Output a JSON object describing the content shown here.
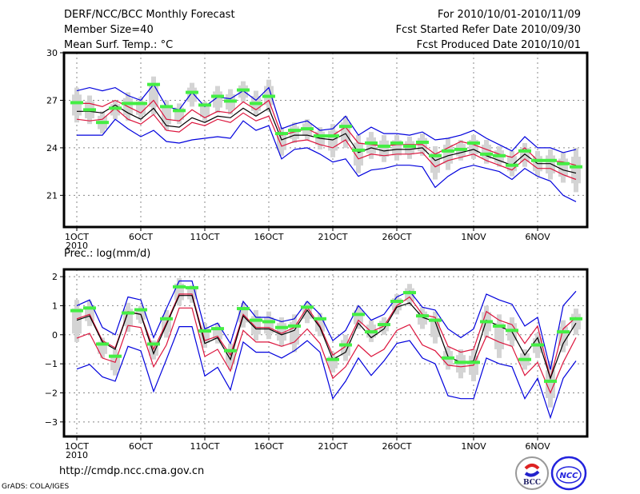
{
  "header": {
    "title": "DERF/NCC/BCC Monthly Forecast",
    "member_size": "Member Size=40",
    "variable": "Mean Surf. Temp.: °C",
    "period": "For 2010/10/01-2010/11/09",
    "start_date": "Fcst Started Refer Date 2010/09/30",
    "produced_date": "Fcst Produced Date 2010/10/01"
  },
  "footer": {
    "url": "http://cmdp.ncc.cma.gov.cn",
    "grads": "GrADS: COLA/IGES",
    "logos": [
      "BCC",
      "NCC"
    ]
  },
  "colors": {
    "ensemble_mean": "#000000",
    "inner_band": "#dc143c",
    "outer_band": "#0000dd",
    "observed_or_control": "#44ee44",
    "spread_box": "#d4d4d4",
    "grid": "#888888"
  },
  "chart_data": [
    {
      "type": "line",
      "title": "Mean Surf. Temp.: °C",
      "xlabel": "",
      "ylabel": "Mean Surf. Temp. (°C)",
      "x_start": "2010-10-01",
      "days": 40,
      "xticks": [
        {
          "day": 1,
          "label": "1OCT",
          "sublabel": "2010"
        },
        {
          "day": 6,
          "label": "6OCT"
        },
        {
          "day": 11,
          "label": "11OCT"
        },
        {
          "day": 16,
          "label": "16OCT"
        },
        {
          "day": 21,
          "label": "21OCT"
        },
        {
          "day": 26,
          "label": "26OCT"
        },
        {
          "day": 32,
          "label": "1NOV"
        },
        {
          "day": 37,
          "label": "6NOV"
        }
      ],
      "yticks": [
        21,
        24,
        27,
        30
      ],
      "ylim": [
        19,
        30
      ],
      "grid": true,
      "series": [
        {
          "name": "upper-outer",
          "color": "blue",
          "values": [
            27.6,
            27.8,
            27.6,
            27.8,
            27.3,
            27.0,
            28.0,
            26.6,
            26.4,
            27.5,
            26.6,
            27.2,
            27.1,
            27.6,
            27.0,
            27.8,
            25.2,
            25.5,
            25.7,
            25.1,
            25.2,
            26.0,
            24.8,
            25.3,
            24.9,
            24.9,
            24.8,
            25.0,
            24.5,
            24.6,
            24.8,
            25.1,
            24.6,
            24.2,
            23.8,
            24.7,
            24.0,
            24.0,
            23.7,
            23.9
          ]
        },
        {
          "name": "upper-inner",
          "color": "red",
          "values": [
            26.8,
            26.8,
            26.6,
            27.0,
            26.6,
            26.2,
            27.0,
            25.8,
            25.7,
            26.4,
            25.9,
            26.3,
            26.2,
            26.9,
            26.4,
            27.0,
            24.8,
            25.0,
            25.2,
            24.8,
            24.8,
            25.3,
            24.3,
            24.2,
            24.1,
            24.2,
            24.2,
            24.2,
            23.6,
            24.0,
            24.4,
            24.2,
            23.9,
            23.6,
            23.4,
            24.0,
            23.2,
            23.2,
            23.1,
            22.9
          ]
        },
        {
          "name": "ensemble-mean",
          "color": "black",
          "values": [
            26.3,
            26.3,
            26.2,
            26.7,
            26.2,
            25.8,
            26.5,
            25.4,
            25.3,
            25.9,
            25.6,
            26.0,
            25.9,
            26.5,
            26.0,
            26.5,
            24.5,
            24.8,
            24.8,
            24.6,
            24.5,
            24.9,
            23.7,
            24.0,
            23.8,
            23.9,
            23.9,
            24.0,
            23.2,
            23.5,
            23.7,
            23.9,
            23.5,
            23.2,
            22.9,
            23.6,
            23.0,
            23.0,
            22.6,
            22.4
          ]
        },
        {
          "name": "lower-inner",
          "color": "red",
          "values": [
            25.8,
            25.7,
            25.8,
            26.5,
            25.8,
            25.5,
            26.1,
            25.1,
            25.0,
            25.6,
            25.4,
            25.8,
            25.6,
            26.2,
            25.7,
            26.0,
            24.1,
            24.4,
            24.5,
            24.2,
            24.0,
            24.5,
            23.3,
            23.6,
            23.5,
            23.6,
            23.6,
            23.7,
            22.8,
            23.2,
            23.4,
            23.6,
            23.2,
            22.9,
            22.6,
            23.3,
            22.7,
            22.7,
            22.3,
            22.0
          ]
        },
        {
          "name": "lower-outer",
          "color": "blue",
          "values": [
            24.8,
            24.8,
            24.8,
            25.8,
            25.2,
            24.7,
            25.1,
            24.4,
            24.3,
            24.5,
            24.6,
            24.7,
            24.6,
            25.7,
            25.1,
            25.4,
            23.3,
            23.9,
            24.0,
            23.6,
            23.1,
            23.3,
            22.2,
            22.6,
            22.7,
            22.9,
            22.9,
            22.8,
            21.5,
            22.2,
            22.7,
            22.9,
            22.7,
            22.5,
            22.0,
            22.7,
            22.2,
            21.9,
            21.0,
            20.6
          ]
        },
        {
          "name": "observed",
          "color": "green",
          "values": [
            26.85,
            26.4,
            25.6,
            26.5,
            26.8,
            26.8,
            28.0,
            26.6,
            26.35,
            27.5,
            26.7,
            27.25,
            26.95,
            27.65,
            26.8,
            27.25,
            24.9,
            25.1,
            25.2,
            24.75,
            24.75,
            25.35,
            23.85,
            24.3,
            24.1,
            24.3,
            24.1,
            24.35,
            23.5,
            23.8,
            23.9,
            24.3,
            23.6,
            23.5,
            22.9,
            23.8,
            23.2,
            23.2,
            23.0,
            22.8
          ]
        },
        {
          "name": "spread-max",
          "color": "gray",
          "values": [
            27.8,
            27.3,
            26.3,
            27.0,
            27.5,
            27.2,
            28.5,
            27.0,
            26.8,
            28.1,
            26.9,
            27.9,
            27.7,
            28.2,
            27.6,
            28.3,
            25.3,
            25.6,
            25.8,
            25.3,
            25.5,
            26.0,
            24.8,
            25.0,
            24.8,
            24.8,
            24.7,
            24.9,
            24.1,
            24.6,
            24.5,
            24.8,
            24.5,
            24.1,
            23.8,
            24.3,
            23.8,
            23.9,
            23.7,
            24.0
          ]
        },
        {
          "name": "spread-min",
          "color": "gray",
          "values": [
            25.6,
            25.5,
            24.9,
            25.8,
            25.7,
            25.8,
            26.1,
            25.1,
            25.5,
            26.6,
            25.7,
            26.2,
            26.1,
            26.9,
            26.0,
            26.3,
            23.5,
            24.3,
            24.5,
            23.9,
            23.4,
            24.0,
            22.4,
            23.3,
            23.1,
            23.2,
            23.3,
            23.5,
            22.0,
            22.6,
            23.2,
            23.3,
            23.0,
            22.8,
            22.2,
            22.8,
            22.2,
            22.0,
            21.8,
            21.2
          ]
        }
      ]
    },
    {
      "type": "line",
      "title": "Prec.: log(mm/d)",
      "xlabel": "",
      "ylabel": "Prec. log(mm/d)",
      "x_start": "2010-10-01",
      "days": 40,
      "xticks": [
        {
          "day": 1,
          "label": "1OCT",
          "sublabel": "2010"
        },
        {
          "day": 6,
          "label": "6OCT"
        },
        {
          "day": 11,
          "label": "11OCT"
        },
        {
          "day": 16,
          "label": "16OCT"
        },
        {
          "day": 21,
          "label": "21OCT"
        },
        {
          "day": 26,
          "label": "26OCT"
        },
        {
          "day": 32,
          "label": "1NOV"
        },
        {
          "day": 37,
          "label": "6NOV"
        }
      ],
      "yticks": [
        -3,
        -2,
        -1,
        0,
        1,
        2
      ],
      "ylim": [
        -3.5,
        2.25
      ],
      "grid": true,
      "series": [
        {
          "name": "upper-outer",
          "color": "blue",
          "values": [
            1.0,
            1.2,
            0.25,
            0.0,
            1.3,
            1.2,
            -0.1,
            0.9,
            1.85,
            1.85,
            0.2,
            0.4,
            -0.3,
            1.15,
            0.6,
            0.6,
            0.45,
            0.55,
            1.15,
            0.7,
            -0.2,
            0.15,
            1.0,
            0.5,
            0.7,
            1.3,
            1.5,
            0.95,
            0.85,
            0.2,
            -0.1,
            0.2,
            1.4,
            1.2,
            1.05,
            0.3,
            0.6,
            -1.2,
            1.0,
            1.5
          ]
        },
        {
          "name": "upper-inner",
          "color": "red",
          "values": [
            0.55,
            0.7,
            -0.2,
            -0.45,
            0.8,
            0.7,
            -0.5,
            0.4,
            1.4,
            1.4,
            -0.2,
            -0.05,
            -0.7,
            0.7,
            0.25,
            0.25,
            0.05,
            0.25,
            0.95,
            0.3,
            -0.7,
            -0.4,
            0.5,
            0.1,
            0.3,
            1.0,
            1.3,
            0.7,
            0.6,
            -0.4,
            -0.6,
            -0.5,
            0.8,
            0.5,
            0.35,
            -0.3,
            0.3,
            -1.5,
            0.2,
            0.6
          ]
        },
        {
          "name": "ensemble-mean",
          "color": "black",
          "values": [
            0.5,
            0.65,
            -0.25,
            -0.5,
            0.78,
            0.7,
            -0.65,
            0.35,
            1.35,
            1.35,
            -0.3,
            -0.1,
            -0.85,
            0.65,
            0.2,
            0.2,
            0.0,
            0.15,
            0.85,
            0.25,
            -0.85,
            -0.6,
            0.4,
            -0.1,
            0.2,
            0.95,
            1.1,
            0.6,
            0.45,
            -0.75,
            -0.95,
            -0.9,
            0.5,
            0.3,
            0.1,
            -0.7,
            -0.1,
            -1.5,
            -0.3,
            0.4
          ]
        },
        {
          "name": "lower-inner",
          "color": "red",
          "values": [
            -0.12,
            0.05,
            -0.8,
            -0.95,
            0.32,
            0.25,
            -1.1,
            -0.35,
            0.92,
            0.92,
            -0.75,
            -0.5,
            -1.25,
            0.15,
            -0.25,
            -0.25,
            -0.4,
            -0.25,
            0.2,
            -0.3,
            -1.5,
            -1.1,
            -0.35,
            -0.75,
            -0.5,
            0.15,
            0.35,
            -0.35,
            -0.55,
            -1.05,
            -1.1,
            -1.05,
            -0.05,
            -0.25,
            -0.4,
            -1.4,
            -0.95,
            -2.0,
            -0.95,
            -0.1
          ]
        },
        {
          "name": "lower-outer",
          "color": "blue",
          "values": [
            -1.18,
            -1.02,
            -1.45,
            -1.6,
            -0.4,
            -0.55,
            -1.95,
            -0.85,
            0.28,
            0.28,
            -1.42,
            -1.12,
            -1.9,
            -0.25,
            -0.6,
            -0.6,
            -0.8,
            -0.55,
            -0.2,
            -0.6,
            -2.2,
            -1.6,
            -0.8,
            -1.4,
            -0.9,
            -0.3,
            -0.2,
            -0.8,
            -1.0,
            -2.1,
            -2.2,
            -2.2,
            -0.8,
            -1.0,
            -1.1,
            -2.2,
            -1.5,
            -2.85,
            -1.5,
            -0.9
          ]
        },
        {
          "name": "observed",
          "color": "green",
          "values": [
            0.83,
            0.92,
            -0.32,
            -0.74,
            0.75,
            0.86,
            -0.32,
            0.55,
            1.65,
            1.62,
            0.13,
            0.21,
            -0.55,
            0.9,
            0.5,
            0.45,
            0.25,
            0.3,
            0.95,
            0.55,
            -0.85,
            -0.35,
            0.7,
            0.1,
            0.35,
            1.15,
            1.45,
            0.65,
            0.5,
            -0.8,
            -0.95,
            -0.95,
            0.45,
            0.3,
            0.15,
            -0.85,
            -0.35,
            -1.6,
            0.1,
            0.55
          ]
        },
        {
          "name": "spread-max",
          "color": "gray",
          "values": [
            1.2,
            1.15,
            -0.1,
            -0.5,
            1.1,
            1.0,
            -0.2,
            0.85,
            1.95,
            1.7,
            0.4,
            0.4,
            -0.3,
            1.1,
            0.85,
            0.8,
            0.6,
            0.7,
            1.15,
            0.75,
            -0.6,
            0.0,
            1.0,
            0.5,
            0.6,
            1.4,
            1.75,
            0.95,
            0.8,
            -0.4,
            -0.5,
            -0.5,
            1.0,
            0.7,
            0.6,
            -0.5,
            0.05,
            -0.9,
            0.5,
            0.9
          ]
        },
        {
          "name": "spread-min",
          "color": "gray",
          "values": [
            -0.25,
            0.3,
            -0.8,
            -1.4,
            0.1,
            0.4,
            -0.85,
            -0.1,
            1.0,
            1.1,
            -0.45,
            -0.3,
            -1.2,
            0.25,
            -0.2,
            -0.15,
            -0.4,
            -0.6,
            0.4,
            -0.05,
            -1.3,
            -0.9,
            0.2,
            -0.25,
            0.0,
            0.7,
            1.0,
            0.2,
            -0.3,
            -1.2,
            -1.5,
            -1.6,
            -0.1,
            -0.8,
            -0.4,
            -1.2,
            -0.8,
            -2.5,
            -0.6,
            0.0
          ]
        }
      ]
    }
  ]
}
